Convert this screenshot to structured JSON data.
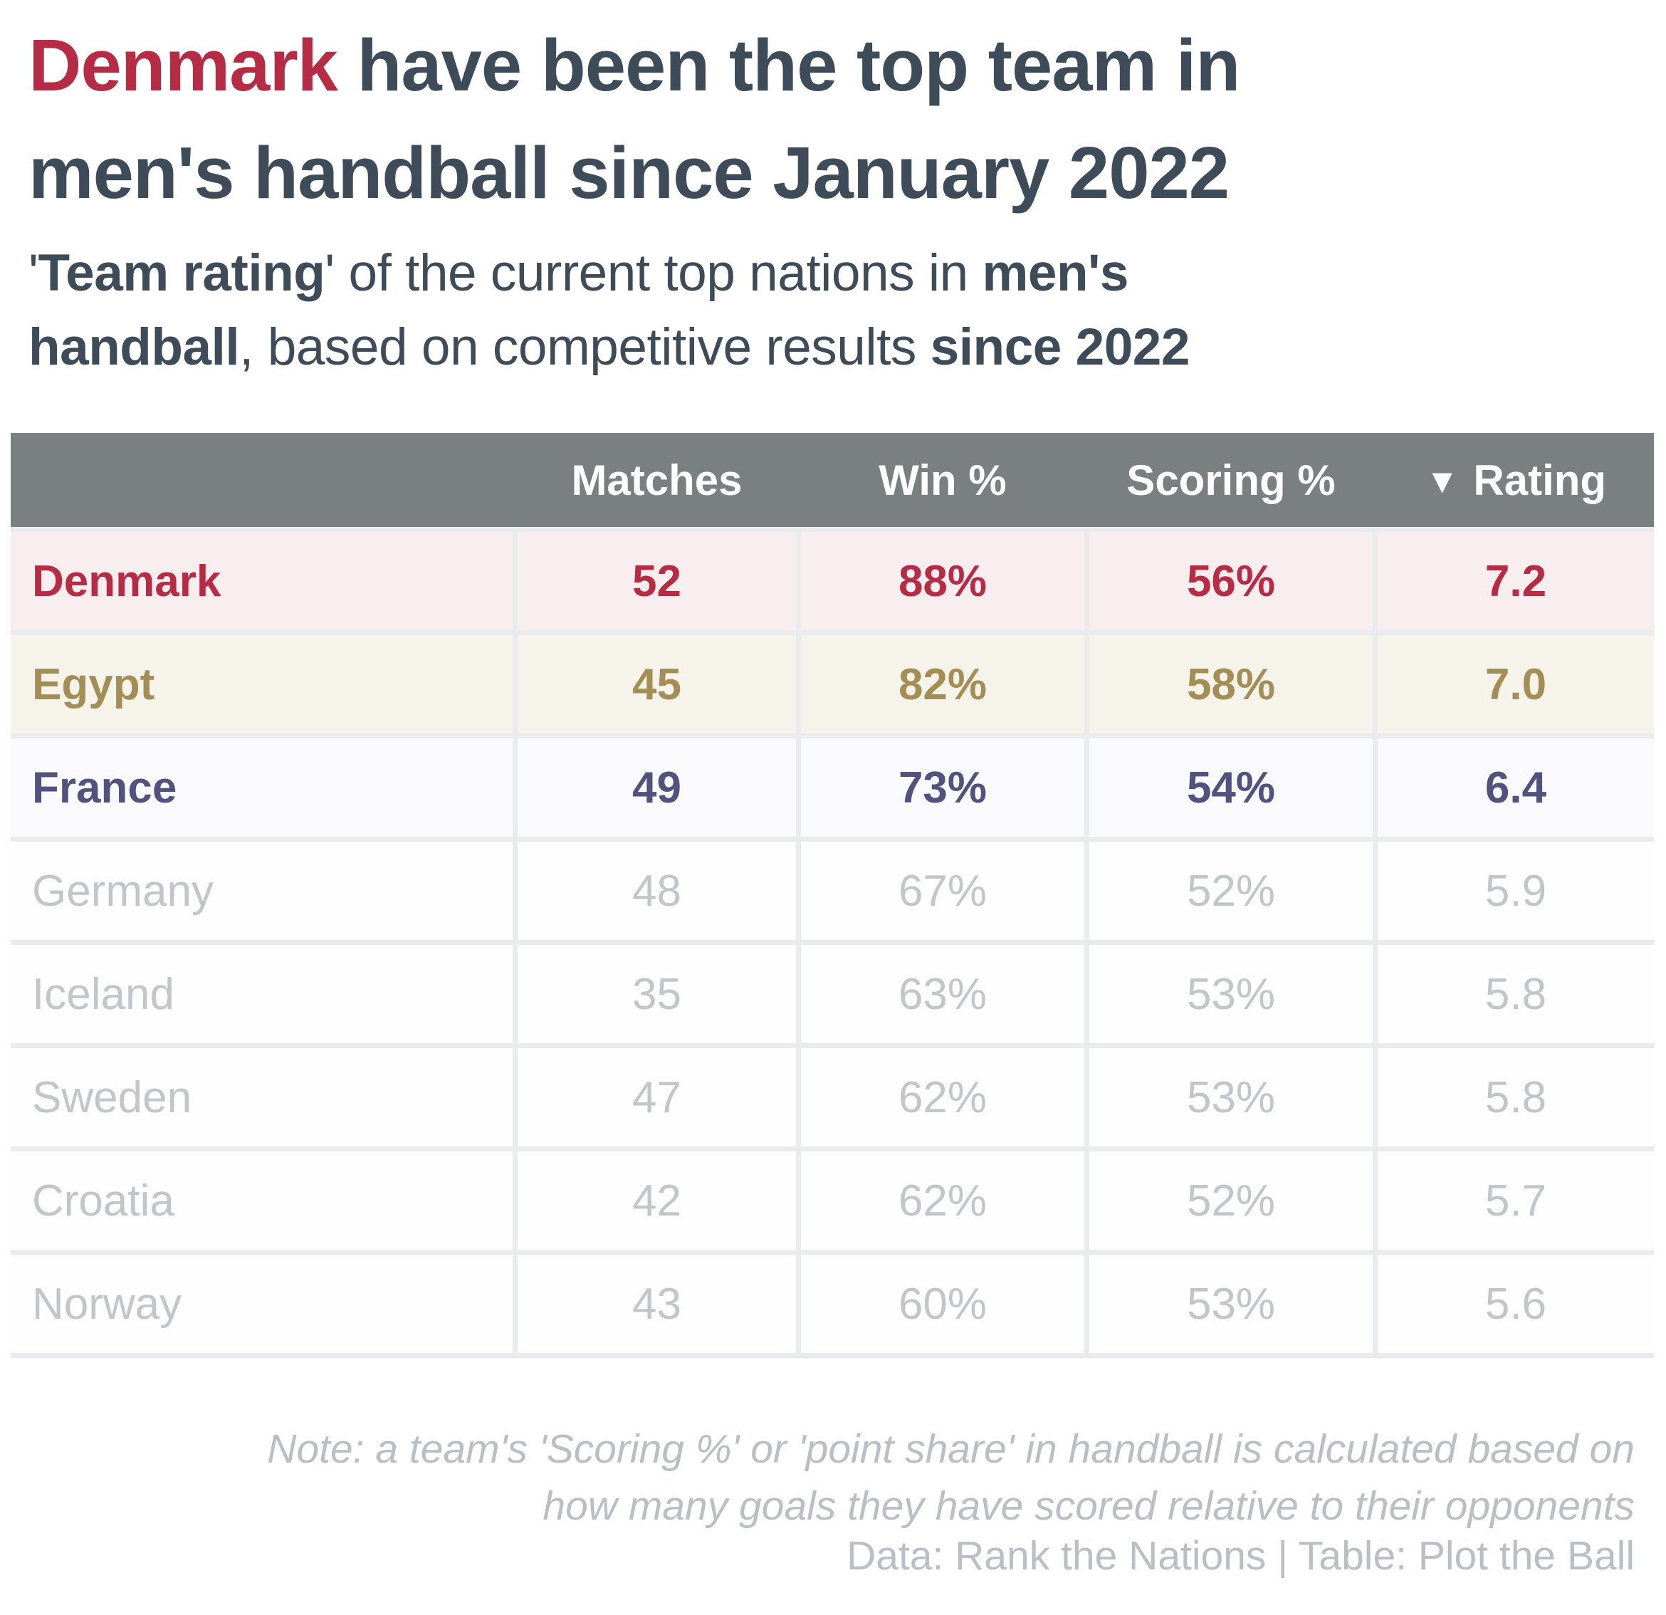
{
  "title": {
    "line1_accent": "Denmark",
    "line1_rest": " have been the top team in",
    "line2": "men's handball since January 2022"
  },
  "subtitle": {
    "open_quote": "'",
    "bold1": "Team rating",
    "seg1": "' of the current top nations in ",
    "bold2": "men's",
    "bold3": "handball",
    "seg2": ", based on competitive results ",
    "bold4": "since 2022"
  },
  "table": {
    "header": {
      "team": "",
      "matches": "Matches",
      "win": "Win %",
      "scoring": "Scoring %",
      "sort_icon": "▼",
      "rating": "Rating"
    },
    "rows": [
      {
        "team": "Denmark",
        "matches": "52",
        "win": "88%",
        "scoring": "56%",
        "rating": "7.2"
      },
      {
        "team": "Egypt",
        "matches": "45",
        "win": "82%",
        "scoring": "58%",
        "rating": "7.0"
      },
      {
        "team": "France",
        "matches": "49",
        "win": "73%",
        "scoring": "54%",
        "rating": "6.4"
      },
      {
        "team": "Germany",
        "matches": "48",
        "win": "67%",
        "scoring": "52%",
        "rating": "5.9"
      },
      {
        "team": "Iceland",
        "matches": "35",
        "win": "63%",
        "scoring": "53%",
        "rating": "5.8"
      },
      {
        "team": "Sweden",
        "matches": "47",
        "win": "62%",
        "scoring": "53%",
        "rating": "5.8"
      },
      {
        "team": "Croatia",
        "matches": "42",
        "win": "62%",
        "scoring": "52%",
        "rating": "5.7"
      },
      {
        "team": "Norway",
        "matches": "43",
        "win": "60%",
        "scoring": "53%",
        "rating": "5.6"
      }
    ]
  },
  "note": {
    "line1": "Note: a team's 'Scoring %' or 'point share' in handball is calculated based on",
    "line2": "how many goals they have scored relative to their opponents"
  },
  "credit": "Data: Rank the Nations | Table: Plot the Ball",
  "colors": {
    "accent_red": "#B52C44",
    "title_slate": "#3E4B58",
    "header_bg": "#7A8080",
    "denmark_bg": "#F8EDEF",
    "egypt_gold": "#A38E55",
    "egypt_bg": "#F6F3EA",
    "france_navy": "#51527D",
    "france_bg": "#FAFAFC",
    "muted_text": "#C1C6CB",
    "divider": "#E9EBEC",
    "footer_gray": "#B9BFC5"
  },
  "chart_data": {
    "type": "table",
    "title": "Denmark have been the top team in men's handball since January 2022",
    "subtitle": "'Team rating' of the current top nations in men's handball, based on competitive results since 2022",
    "columns": [
      "Team",
      "Matches",
      "Win %",
      "Scoring %",
      "Rating"
    ],
    "rows": [
      [
        "Denmark",
        52,
        "88%",
        "56%",
        7.2
      ],
      [
        "Egypt",
        45,
        "82%",
        "58%",
        7.0
      ],
      [
        "France",
        49,
        "73%",
        "54%",
        6.4
      ],
      [
        "Germany",
        48,
        "67%",
        "52%",
        5.9
      ],
      [
        "Iceland",
        35,
        "63%",
        "53%",
        5.8
      ],
      [
        "Sweden",
        47,
        "62%",
        "53%",
        5.8
      ],
      [
        "Croatia",
        42,
        "62%",
        "52%",
        5.7
      ],
      [
        "Norway",
        43,
        "60%",
        "53%",
        5.6
      ]
    ],
    "sort": "Rating descending",
    "legend_position": "none",
    "note": "Note: a team's 'Scoring %' or 'point share' in handball is calculated based on how many goals they have scored relative to their opponents",
    "credit": "Data: Rank the Nations | Table: Plot the Ball"
  }
}
